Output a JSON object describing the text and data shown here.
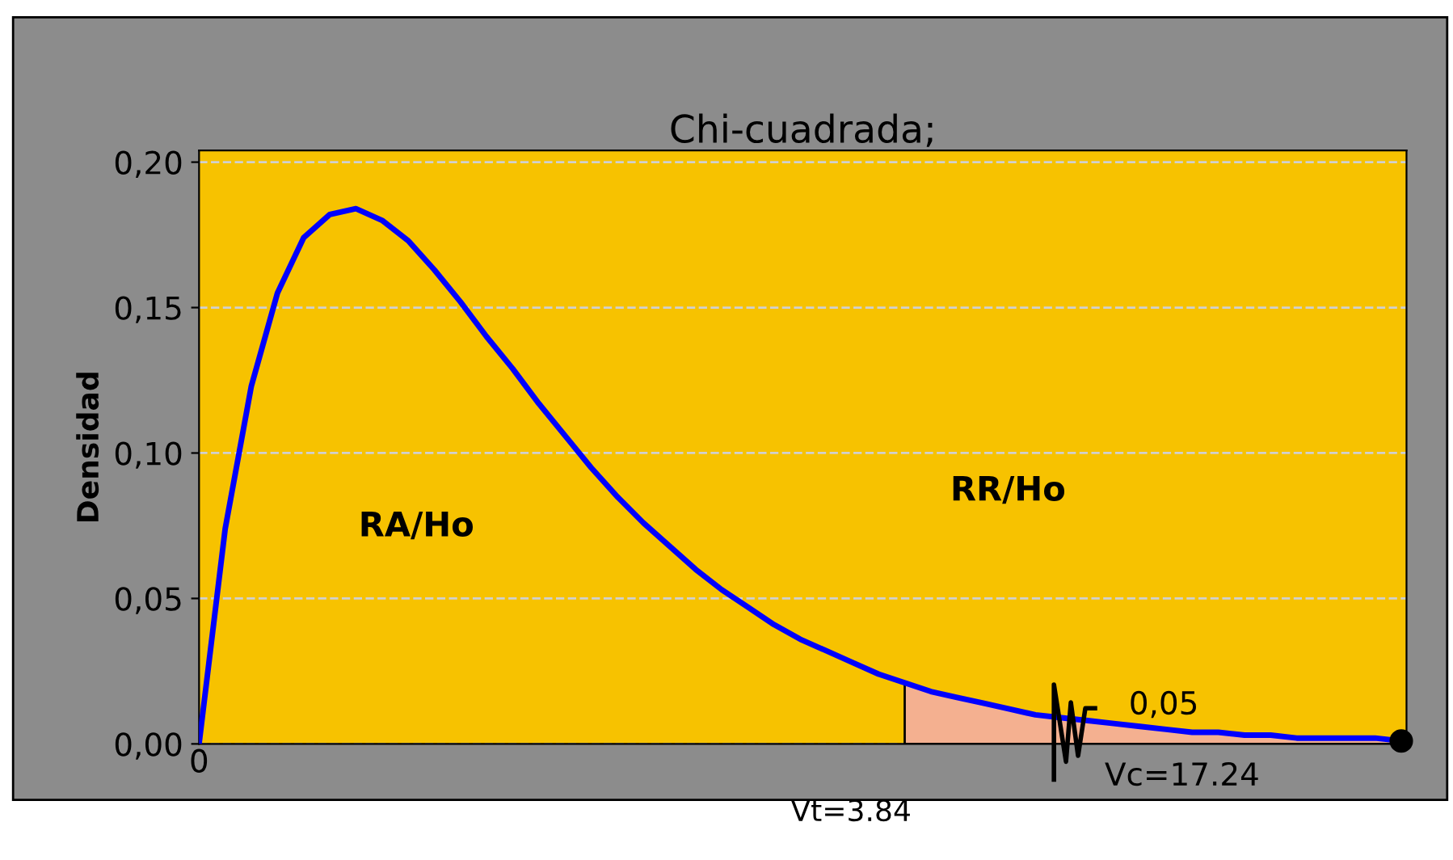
{
  "chart_data": {
    "type": "line",
    "title": "Chi-cuadrada;",
    "ylabel": "Densidad",
    "categories": [
      "0",
      null,
      null,
      null,
      null,
      null,
      null,
      null,
      null,
      null,
      null,
      null,
      null,
      null,
      null,
      null,
      null,
      null,
      null,
      null,
      null,
      null,
      null,
      null,
      null,
      null,
      null,
      null,
      null,
      null,
      null,
      null,
      null,
      null,
      null,
      null,
      null,
      null,
      null,
      null,
      null,
      null,
      null,
      null,
      null,
      null,
      null
    ],
    "series": [
      {
        "color": "#0000ff",
        "values": [
          0,
          0.074,
          0.123,
          0.155,
          0.174,
          0.182,
          0.184,
          0.18,
          0.173,
          0.163,
          0.152,
          0.14,
          0.129,
          0.117,
          0.106,
          0.095,
          0.085,
          0.076,
          0.068,
          0.06,
          0.053,
          0.047,
          0.041,
          0.036,
          0.032,
          0.028,
          0.024,
          0.021,
          0.018,
          0.016,
          0.014,
          0.012,
          0.01,
          0.009,
          0.008,
          0.007,
          0.006,
          0.005,
          0.004,
          0.004,
          0.003,
          0.003,
          0.002,
          0.002,
          0.002,
          0.002,
          0.001
        ]
      },
      {
        "type": "area",
        "color": "#f4b090",
        "values": [
          null,
          null,
          null,
          null,
          null,
          null,
          null,
          null,
          null,
          null,
          null,
          null,
          null,
          null,
          null,
          null,
          null,
          null,
          null,
          null,
          null,
          null,
          null,
          null,
          null,
          null,
          null,
          0.021,
          0.018,
          0.016,
          0.014,
          0.012,
          0.01,
          0.009,
          0.008,
          0.007,
          0.006,
          0.005,
          0.004,
          0.004,
          0.003,
          0.003,
          0.002,
          0.002,
          0.002,
          0.002,
          0.001
        ]
      },
      {
        "type": "scatter",
        "color": "#000000",
        "values": [
          null,
          null,
          null,
          null,
          null,
          null,
          null,
          null,
          null,
          null,
          null,
          null,
          null,
          null,
          null,
          null,
          null,
          null,
          null,
          null,
          null,
          null,
          null,
          null,
          null,
          null,
          null,
          null,
          null,
          null,
          null,
          null,
          null,
          null,
          null,
          null,
          null,
          null,
          null,
          null,
          null,
          null,
          null,
          null,
          null,
          null,
          0.001
        ]
      }
    ],
    "ylim": [
      0,
      0.204
    ],
    "yticks": [
      {
        "value": 0,
        "label": "0,00"
      },
      {
        "value": 0.05,
        "label": "0,05"
      },
      {
        "value": 0.1,
        "label": "0,10"
      },
      {
        "value": 0.15,
        "label": "0,15"
      },
      {
        "value": 0.2,
        "label": "0,20"
      }
    ],
    "grid": "y",
    "line_style": "solid",
    "annotations": [
      "RA/Ho",
      "RR/Ho",
      "0,05",
      "Vt=3.84",
      "Vc=17.24"
    ]
  }
}
